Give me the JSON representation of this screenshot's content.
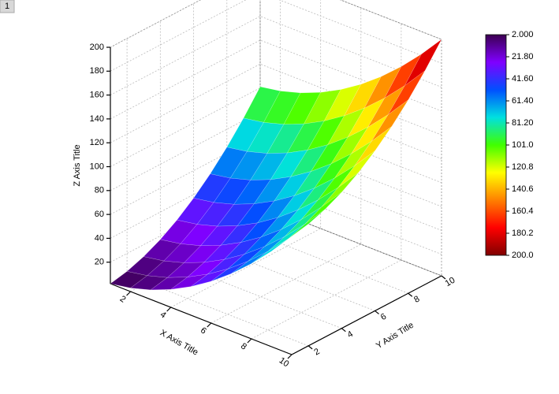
{
  "tab_label": "1",
  "chart_data": {
    "type": "surface",
    "x_label": "X Axis Title",
    "y_label": "Y Axis Title",
    "z_label": "Z Axis Title",
    "x": [
      1,
      2,
      3,
      4,
      5,
      6,
      7,
      8,
      9,
      10
    ],
    "y": [
      1,
      2,
      3,
      4,
      5,
      6,
      7,
      8,
      9,
      10
    ],
    "z": [
      [
        2,
        5,
        10,
        17,
        26,
        37,
        50,
        65,
        82,
        101
      ],
      [
        5,
        8,
        13,
        20,
        29,
        40,
        53,
        68,
        85,
        104
      ],
      [
        10,
        13,
        18,
        25,
        34,
        45,
        58,
        73,
        90,
        109
      ],
      [
        17,
        20,
        25,
        32,
        41,
        52,
        65,
        80,
        97,
        116
      ],
      [
        26,
        29,
        34,
        41,
        50,
        61,
        74,
        89,
        106,
        125
      ],
      [
        37,
        40,
        45,
        52,
        61,
        72,
        85,
        100,
        117,
        136
      ],
      [
        50,
        53,
        58,
        65,
        74,
        85,
        98,
        113,
        130,
        149
      ],
      [
        65,
        68,
        73,
        80,
        89,
        100,
        113,
        128,
        145,
        164
      ],
      [
        82,
        85,
        90,
        97,
        106,
        117,
        130,
        145,
        162,
        181
      ],
      [
        101,
        104,
        109,
        116,
        125,
        136,
        149,
        164,
        181,
        200
      ]
    ],
    "xlim": [
      1,
      10
    ],
    "ylim": [
      1,
      10
    ],
    "zlim": [
      2,
      200
    ],
    "xticks": [
      2,
      4,
      6,
      8,
      10
    ],
    "yticks": [
      2,
      4,
      6,
      8,
      10
    ],
    "zticks": [
      20,
      40,
      60,
      80,
      100,
      120,
      140,
      160,
      180,
      200
    ],
    "grid": true,
    "colormap": [
      "#3c0050",
      "#8000ff",
      "#0050ff",
      "#00e0e0",
      "#40ff00",
      "#ffff00",
      "#ff8000",
      "#ff0000",
      "#800000"
    ],
    "colorbar_ticks": [
      {
        "value": 2,
        "label": "2.000"
      },
      {
        "value": 21.8,
        "label": "21.80"
      },
      {
        "value": 41.6,
        "label": "41.60"
      },
      {
        "value": 61.4,
        "label": "61.40"
      },
      {
        "value": 81.2,
        "label": "81.20"
      },
      {
        "value": 101,
        "label": "101.0"
      },
      {
        "value": 120.8,
        "label": "120.8"
      },
      {
        "value": 140.6,
        "label": "140.6"
      },
      {
        "value": 160.4,
        "label": "160.4"
      },
      {
        "value": 180.2,
        "label": "180.2"
      },
      {
        "value": 200,
        "label": "200.0"
      }
    ]
  }
}
